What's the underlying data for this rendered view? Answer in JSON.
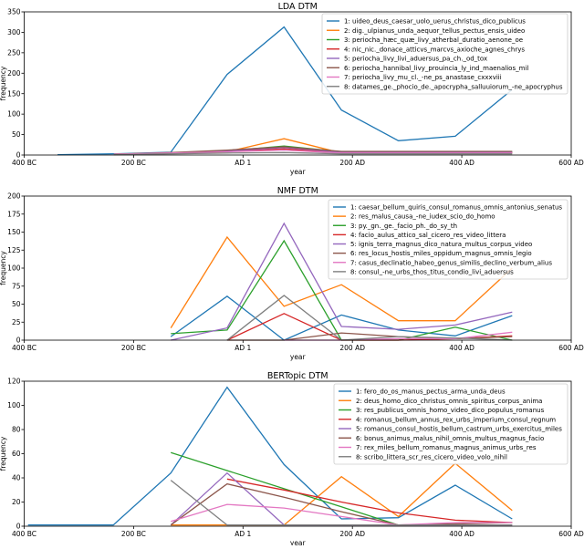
{
  "colors": [
    "#1f77b4",
    "#ff7f0e",
    "#2ca02c",
    "#d62728",
    "#9467bd",
    "#8c564b",
    "#e377c2",
    "#7f7f7f"
  ],
  "chart_data": [
    {
      "type": "line",
      "title": "LDA DTM",
      "xlabel": "year",
      "ylabel": "frequency",
      "xlim": [
        -400,
        600
      ],
      "ylim": [
        0,
        350
      ],
      "xticks": [
        {
          "v": -400,
          "label": "400 BC"
        },
        {
          "v": -200,
          "label": "200 BC"
        },
        {
          "v": 0,
          "label": "AD 1"
        },
        {
          "v": 200,
          "label": "200 AD"
        },
        {
          "v": 400,
          "label": "400 AD"
        },
        {
          "v": 600,
          "label": "600 AD"
        }
      ],
      "yticks": [
        0,
        50,
        100,
        150,
        200,
        250,
        300,
        350
      ],
      "grid": false,
      "legend": "top-right",
      "series": [
        {
          "name": "1: uideo_deus_caesar_uolo_uerus_christus_dico_publicus",
          "x": [
            -339,
            -236,
            -132,
            -29,
            75,
            180,
            284,
            388,
            492
          ],
          "y": [
            1,
            3,
            7,
            197,
            313,
            110,
            35,
            46,
            160
          ]
        },
        {
          "name": "2: dig._ulpianus_unda_aequor_tellus_pectus_ensis_uideo",
          "x": [
            -236,
            -132,
            -29,
            75,
            180,
            284,
            388,
            492
          ],
          "y": [
            2,
            5,
            8,
            40,
            5,
            5,
            5,
            5
          ]
        },
        {
          "name": "3: periocha_hæc_quæ_livy_atherbal_duratio_aenone_oe",
          "x": [
            -236,
            -132,
            -29,
            75,
            180,
            284,
            388,
            492
          ],
          "y": [
            2,
            5,
            10,
            22,
            8,
            8,
            8,
            8
          ]
        },
        {
          "name": "4: nic_nic._donace_atticvs_marcvs_axioche_agnes_chrys",
          "x": [
            -236,
            -132,
            -29,
            75,
            180,
            284,
            388,
            492
          ],
          "y": [
            2,
            5,
            9,
            15,
            6,
            6,
            6,
            6
          ]
        },
        {
          "name": "5: periocha_livy_livi_aduersus_pa_ch._od_tox",
          "x": [
            -236,
            -132,
            -29,
            75,
            180,
            284,
            388,
            492
          ],
          "y": [
            2,
            5,
            10,
            18,
            7,
            7,
            7,
            7
          ]
        },
        {
          "name": "6: periocha_hannibal_livy_prouincia_ly_ind_maenalios_mil",
          "x": [
            -236,
            -132,
            -29,
            75,
            180,
            284,
            388,
            492
          ],
          "y": [
            2,
            6,
            12,
            20,
            9,
            9,
            9,
            9
          ]
        },
        {
          "name": "7: periocha_livy_mu_cl._-ne_ps_anastase_cxxxviii",
          "x": [
            -236,
            -132,
            -29,
            75,
            180,
            284,
            388,
            492
          ],
          "y": [
            2,
            5,
            8,
            12,
            5,
            5,
            5,
            5
          ]
        },
        {
          "name": "8: datames_ge._phocio_de._apocrypha_salluuiorum_-ne_apocryphus",
          "x": [
            -236,
            -132,
            -29,
            75,
            180,
            284,
            388,
            492
          ],
          "y": [
            1,
            3,
            5,
            6,
            3,
            3,
            3,
            3
          ]
        }
      ]
    },
    {
      "type": "line",
      "title": "NMF DTM",
      "xlabel": "year",
      "ylabel": "frequency",
      "xlim": [
        -400,
        600
      ],
      "ylim": [
        0,
        200
      ],
      "xticks": [
        {
          "v": -400,
          "label": "400 BC"
        },
        {
          "v": -200,
          "label": "200 BC"
        },
        {
          "v": 0,
          "label": "AD 1"
        },
        {
          "v": 200,
          "label": "200 AD"
        },
        {
          "v": 400,
          "label": "400 AD"
        },
        {
          "v": 600,
          "label": "600 AD"
        }
      ],
      "yticks": [
        0,
        25,
        50,
        75,
        100,
        125,
        150,
        175,
        200
      ],
      "grid": false,
      "legend": "top-right",
      "series": [
        {
          "name": "1: caesar_bellum_quiris_consul_romanus_omnis_antonius_senatus",
          "x": [
            -132,
            -29,
            75,
            180,
            284,
            388,
            492
          ],
          "y": [
            5,
            61,
            0,
            35,
            14,
            6,
            34
          ]
        },
        {
          "name": "2: res_malus_causa_-ne_iudex_scio_do_homo",
          "x": [
            -132,
            -29,
            75,
            180,
            284,
            388,
            492
          ],
          "y": [
            17,
            143,
            47,
            77,
            27,
            27,
            100
          ]
        },
        {
          "name": "3: py._gn._ge._facio_ph._do_sy_th",
          "x": [
            -132,
            -29,
            75,
            180,
            284,
            388,
            492
          ],
          "y": [
            9,
            14,
            138,
            0,
            0,
            18,
            0
          ]
        },
        {
          "name": "4: facio_aulus_attico_sal_cicero_res_video_littera",
          "x": [
            -29,
            75,
            180,
            284,
            388,
            492
          ],
          "y": [
            0,
            37,
            0,
            0,
            2,
            6
          ]
        },
        {
          "name": "5: ignis_terra_magnus_dico_natura_multus_corpus_video",
          "x": [
            -132,
            -29,
            75,
            180,
            284,
            388,
            492
          ],
          "y": [
            0,
            17,
            162,
            19,
            15,
            21,
            39
          ]
        },
        {
          "name": "6: res_locus_hostis_miles_oppidum_magnus_omnis_legio",
          "x": [
            -29,
            75,
            180,
            284,
            388,
            492
          ],
          "y": [
            0,
            0,
            10,
            5,
            2,
            5
          ]
        },
        {
          "name": "7: casus_declinatio_habeo_genus_similis_declino_verbum_alius",
          "x": [
            75,
            180,
            284,
            388,
            492
          ],
          "y": [
            0,
            0,
            2,
            2,
            11
          ]
        },
        {
          "name": "8: consul_-ne_urbs_thos_titus_condio_livi_aduersus",
          "x": [
            -29,
            75,
            180,
            284,
            388,
            492
          ],
          "y": [
            0,
            62,
            0,
            5,
            3,
            0
          ]
        }
      ]
    },
    {
      "type": "line",
      "title": "BERTopic DTM",
      "xlabel": "year",
      "ylabel": "frequency",
      "xlim": [
        -400,
        600
      ],
      "ylim": [
        0,
        120
      ],
      "xticks": [
        {
          "v": -400,
          "label": "400 BC"
        },
        {
          "v": -200,
          "label": "200 BC"
        },
        {
          "v": 0,
          "label": "AD 1"
        },
        {
          "v": 200,
          "label": "200 AD"
        },
        {
          "v": 400,
          "label": "400 AD"
        },
        {
          "v": 600,
          "label": "600 AD"
        }
      ],
      "yticks": [
        0,
        20,
        40,
        60,
        80,
        100,
        120
      ],
      "grid": false,
      "legend": "top-right",
      "series": [
        {
          "name": "1: fero_do_os_manus_pectus_arma_unda_deus",
          "x": [
            -393,
            -237,
            -132,
            -29,
            75,
            180,
            284,
            388,
            492
          ],
          "y": [
            1,
            1,
            44,
            115,
            51,
            6,
            7,
            34,
            6
          ]
        },
        {
          "name": "2: deus_homo_dico_christus_omnis_spiritus_corpus_anima",
          "x": [
            -132,
            -29,
            75,
            180,
            284,
            388,
            492
          ],
          "y": [
            1,
            1,
            1,
            41,
            8,
            52,
            13
          ]
        },
        {
          "name": "3: res_publicus_omnis_homo_video_dico_populus_romanus",
          "x": [
            -132,
            -29,
            75,
            180,
            284
          ],
          "y": [
            61,
            46,
            31,
            16,
            1
          ]
        },
        {
          "name": "4: romanus_bellum_annus_rex_urbs_imperium_consul_regnum",
          "x": [
            -29,
            75,
            180,
            284,
            388,
            492
          ],
          "y": [
            39,
            30,
            20,
            11,
            5,
            3
          ]
        },
        {
          "name": "5: romanus_consul_hostis_bellum_castrum_urbs_exercitus_miles",
          "x": [
            -132,
            -29,
            75,
            180,
            284,
            388,
            492
          ],
          "y": [
            1,
            44,
            1,
            1,
            1,
            1,
            1
          ]
        },
        {
          "name": "6: bonus_animus_malus_nihil_omnis_multus_magnus_facio",
          "x": [
            -132,
            -29,
            75,
            180,
            284,
            388,
            492
          ],
          "y": [
            1,
            35,
            24,
            12,
            1,
            2,
            3
          ]
        },
        {
          "name": "7: rex_miles_bellum_romanus_magnus_animus_urbs_res",
          "x": [
            -132,
            -29,
            75,
            180,
            284,
            388,
            492
          ],
          "y": [
            4,
            18,
            15,
            8,
            1,
            3,
            3
          ]
        },
        {
          "name": "8: scribo_littera_scr_res_cicero_video_volo_nihil",
          "x": [
            -132,
            -29,
            75,
            180,
            284,
            388,
            492
          ],
          "y": [
            38,
            1,
            1,
            1,
            1,
            1,
            1
          ]
        }
      ]
    }
  ]
}
